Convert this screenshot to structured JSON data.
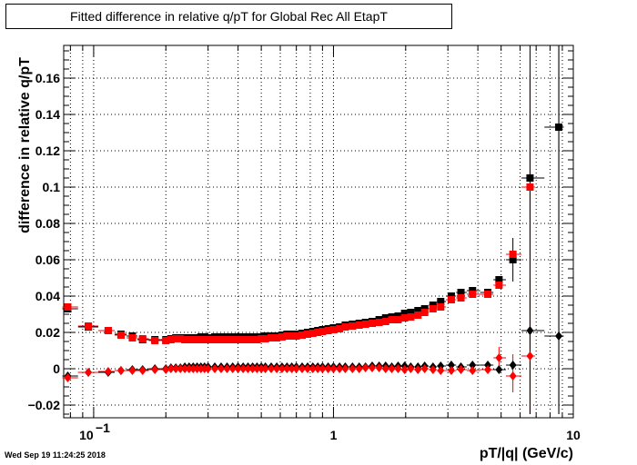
{
  "title": "Fitted difference in relative q/pT for Global Rec All EtapT",
  "timestamp": "Wed Sep 19 11:24:25 2018",
  "chart_data": {
    "type": "scatter",
    "title": "Fitted difference in relative q/pT for Global Rec All EtapT",
    "xlabel": "pT/|q| (GeV/c)",
    "ylabel": "difference in relative q/pT",
    "xscale": "log",
    "xlim": [
      0.075,
      10
    ],
    "ylim": [
      -0.027,
      0.178
    ],
    "grid": true,
    "x_ticks": [
      {
        "value": 0.1,
        "label": "10",
        "sup": "−1"
      },
      {
        "value": 1,
        "label": "1",
        "sup": ""
      },
      {
        "value": 10,
        "label": "10",
        "sup": ""
      }
    ],
    "y_ticks": [
      {
        "value": -0.02,
        "label": "−0.02"
      },
      {
        "value": 0,
        "label": "0"
      },
      {
        "value": 0.02,
        "label": "0.02"
      },
      {
        "value": 0.04,
        "label": "0.04"
      },
      {
        "value": 0.06,
        "label": "0.06"
      },
      {
        "value": 0.08,
        "label": "0.08"
      },
      {
        "value": 0.1,
        "label": "0.1"
      },
      {
        "value": 0.12,
        "label": "0.12"
      },
      {
        "value": 0.14,
        "label": "0.14"
      },
      {
        "value": 0.16,
        "label": "0.16"
      }
    ],
    "series": [
      {
        "marker": "square",
        "color": "#000000",
        "points": [
          [
            0.078,
            0.033
          ],
          [
            0.095,
            0.023
          ],
          [
            0.115,
            0.021
          ],
          [
            0.13,
            0.019
          ],
          [
            0.145,
            0.018
          ],
          [
            0.16,
            0.016
          ],
          [
            0.18,
            0.016
          ],
          [
            0.2,
            0.016
          ],
          [
            0.21,
            0.0165
          ],
          [
            0.22,
            0.017
          ],
          [
            0.23,
            0.017
          ],
          [
            0.24,
            0.017
          ],
          [
            0.25,
            0.017
          ],
          [
            0.26,
            0.017
          ],
          [
            0.27,
            0.017
          ],
          [
            0.28,
            0.0175
          ],
          [
            0.29,
            0.0175
          ],
          [
            0.3,
            0.017
          ],
          [
            0.32,
            0.0175
          ],
          [
            0.34,
            0.0175
          ],
          [
            0.36,
            0.0175
          ],
          [
            0.38,
            0.0175
          ],
          [
            0.4,
            0.0175
          ],
          [
            0.42,
            0.0175
          ],
          [
            0.44,
            0.0175
          ],
          [
            0.46,
            0.0175
          ],
          [
            0.48,
            0.0175
          ],
          [
            0.5,
            0.0175
          ],
          [
            0.52,
            0.018
          ],
          [
            0.55,
            0.018
          ],
          [
            0.58,
            0.018
          ],
          [
            0.61,
            0.0185
          ],
          [
            0.64,
            0.019
          ],
          [
            0.67,
            0.019
          ],
          [
            0.7,
            0.019
          ],
          [
            0.74,
            0.0195
          ],
          [
            0.78,
            0.02
          ],
          [
            0.82,
            0.0205
          ],
          [
            0.86,
            0.021
          ],
          [
            0.9,
            0.0215
          ],
          [
            0.95,
            0.022
          ],
          [
            1.0,
            0.0225
          ],
          [
            1.06,
            0.023
          ],
          [
            1.12,
            0.024
          ],
          [
            1.2,
            0.0245
          ],
          [
            1.28,
            0.025
          ],
          [
            1.36,
            0.0255
          ],
          [
            1.45,
            0.026
          ],
          [
            1.55,
            0.027
          ],
          [
            1.65,
            0.028
          ],
          [
            1.75,
            0.0285
          ],
          [
            1.86,
            0.029
          ],
          [
            1.98,
            0.0305
          ],
          [
            2.1,
            0.031
          ],
          [
            2.25,
            0.032
          ],
          [
            2.4,
            0.033
          ],
          [
            2.6,
            0.035
          ],
          [
            2.8,
            0.037
          ],
          [
            3.1,
            0.04
          ],
          [
            3.4,
            0.042
          ],
          [
            3.8,
            0.043
          ],
          [
            4.4,
            0.042
          ],
          [
            4.9,
            0.049
          ],
          [
            5.6,
            0.06
          ],
          [
            6.6,
            0.105
          ],
          [
            8.7,
            0.133
          ]
        ]
      },
      {
        "marker": "square",
        "color": "#ff0000",
        "points": [
          [
            0.078,
            0.034
          ],
          [
            0.095,
            0.0235
          ],
          [
            0.115,
            0.021
          ],
          [
            0.13,
            0.0185
          ],
          [
            0.145,
            0.017
          ],
          [
            0.16,
            0.0165
          ],
          [
            0.18,
            0.0155
          ],
          [
            0.2,
            0.0155
          ],
          [
            0.21,
            0.016
          ],
          [
            0.22,
            0.0165
          ],
          [
            0.23,
            0.0165
          ],
          [
            0.24,
            0.016
          ],
          [
            0.25,
            0.016
          ],
          [
            0.26,
            0.016
          ],
          [
            0.27,
            0.016
          ],
          [
            0.28,
            0.016
          ],
          [
            0.29,
            0.016
          ],
          [
            0.3,
            0.016
          ],
          [
            0.32,
            0.016
          ],
          [
            0.34,
            0.016
          ],
          [
            0.36,
            0.016
          ],
          [
            0.38,
            0.016
          ],
          [
            0.4,
            0.016
          ],
          [
            0.42,
            0.016
          ],
          [
            0.44,
            0.016
          ],
          [
            0.46,
            0.016
          ],
          [
            0.48,
            0.016
          ],
          [
            0.5,
            0.0165
          ],
          [
            0.52,
            0.0165
          ],
          [
            0.55,
            0.017
          ],
          [
            0.58,
            0.017
          ],
          [
            0.61,
            0.0175
          ],
          [
            0.64,
            0.018
          ],
          [
            0.67,
            0.018
          ],
          [
            0.7,
            0.018
          ],
          [
            0.74,
            0.0185
          ],
          [
            0.78,
            0.019
          ],
          [
            0.82,
            0.0195
          ],
          [
            0.86,
            0.02
          ],
          [
            0.9,
            0.0205
          ],
          [
            0.95,
            0.021
          ],
          [
            1.0,
            0.0215
          ],
          [
            1.06,
            0.022
          ],
          [
            1.12,
            0.023
          ],
          [
            1.2,
            0.0235
          ],
          [
            1.28,
            0.024
          ],
          [
            1.36,
            0.0245
          ],
          [
            1.45,
            0.025
          ],
          [
            1.55,
            0.0255
          ],
          [
            1.65,
            0.026
          ],
          [
            1.75,
            0.027
          ],
          [
            1.86,
            0.027
          ],
          [
            1.98,
            0.028
          ],
          [
            2.1,
            0.0285
          ],
          [
            2.25,
            0.0295
          ],
          [
            2.4,
            0.031
          ],
          [
            2.6,
            0.033
          ],
          [
            2.8,
            0.034
          ],
          [
            3.1,
            0.038
          ],
          [
            3.4,
            0.039
          ],
          [
            3.8,
            0.041
          ],
          [
            4.4,
            0.041
          ],
          [
            4.9,
            0.046
          ],
          [
            5.6,
            0.063
          ],
          [
            6.6,
            0.1
          ]
        ]
      },
      {
        "marker": "diamond",
        "color": "#000000",
        "points": [
          [
            0.078,
            -0.004
          ],
          [
            0.095,
            -0.002
          ],
          [
            0.115,
            -0.002
          ],
          [
            0.13,
            -0.001
          ],
          [
            0.145,
            -0.0005
          ],
          [
            0.16,
            -0.0005
          ],
          [
            0.18,
            0
          ],
          [
            0.2,
            0
          ],
          [
            0.21,
            0.0005
          ],
          [
            0.22,
            0.0005
          ],
          [
            0.23,
            0.0005
          ],
          [
            0.24,
            0.001
          ],
          [
            0.25,
            0.001
          ],
          [
            0.26,
            0.001
          ],
          [
            0.27,
            0.001
          ],
          [
            0.28,
            0.001
          ],
          [
            0.29,
            0.001
          ],
          [
            0.3,
            0.001
          ],
          [
            0.32,
            0.001
          ],
          [
            0.34,
            0.001
          ],
          [
            0.36,
            0.001
          ],
          [
            0.38,
            0.001
          ],
          [
            0.4,
            0.001
          ],
          [
            0.42,
            0.001
          ],
          [
            0.44,
            0.001
          ],
          [
            0.46,
            0.001
          ],
          [
            0.48,
            0.001
          ],
          [
            0.5,
            0.001
          ],
          [
            0.52,
            0.001
          ],
          [
            0.55,
            0.001
          ],
          [
            0.58,
            0.001
          ],
          [
            0.61,
            0.001
          ],
          [
            0.64,
            0.001
          ],
          [
            0.67,
            0.001
          ],
          [
            0.7,
            0.001
          ],
          [
            0.74,
            0.001
          ],
          [
            0.78,
            0.001
          ],
          [
            0.82,
            0.001
          ],
          [
            0.86,
            0.001
          ],
          [
            0.9,
            0.001
          ],
          [
            0.95,
            0.001
          ],
          [
            1.0,
            0.001
          ],
          [
            1.06,
            0.001
          ],
          [
            1.12,
            0.001
          ],
          [
            1.2,
            0.001
          ],
          [
            1.28,
            0.001
          ],
          [
            1.36,
            0.001
          ],
          [
            1.45,
            0.0015
          ],
          [
            1.55,
            0.0015
          ],
          [
            1.65,
            0.0015
          ],
          [
            1.75,
            0.001
          ],
          [
            1.86,
            0.0015
          ],
          [
            1.98,
            0.0015
          ],
          [
            2.1,
            0.001
          ],
          [
            2.25,
            0.001
          ],
          [
            2.4,
            0.0015
          ],
          [
            2.6,
            0.001
          ],
          [
            2.8,
            0.0015
          ],
          [
            3.1,
            0.002
          ],
          [
            3.4,
            0.001
          ],
          [
            3.8,
            0.002
          ],
          [
            4.4,
            0.002
          ],
          [
            4.9,
            -0.0005
          ],
          [
            5.6,
            0.002
          ],
          [
            6.6,
            0.021
          ],
          [
            8.7,
            0.018
          ]
        ]
      },
      {
        "marker": "diamond",
        "color": "#ff0000",
        "points": [
          [
            0.078,
            -0.005
          ],
          [
            0.095,
            -0.002
          ],
          [
            0.115,
            -0.0015
          ],
          [
            0.13,
            -0.001
          ],
          [
            0.145,
            -0.001
          ],
          [
            0.16,
            -0.001
          ],
          [
            0.18,
            -0.0005
          ],
          [
            0.2,
            -0.0005
          ],
          [
            0.21,
            0
          ],
          [
            0.22,
            0
          ],
          [
            0.23,
            0
          ],
          [
            0.24,
            0
          ],
          [
            0.25,
            0
          ],
          [
            0.26,
            0
          ],
          [
            0.27,
            0
          ],
          [
            0.28,
            0
          ],
          [
            0.29,
            0
          ],
          [
            0.3,
            0
          ],
          [
            0.32,
            0
          ],
          [
            0.34,
            0
          ],
          [
            0.36,
            0
          ],
          [
            0.38,
            0
          ],
          [
            0.4,
            0
          ],
          [
            0.42,
            0
          ],
          [
            0.44,
            0
          ],
          [
            0.46,
            0
          ],
          [
            0.48,
            0
          ],
          [
            0.5,
            0
          ],
          [
            0.52,
            0
          ],
          [
            0.55,
            0
          ],
          [
            0.58,
            0
          ],
          [
            0.61,
            0
          ],
          [
            0.64,
            0
          ],
          [
            0.67,
            0
          ],
          [
            0.7,
            0
          ],
          [
            0.74,
            0
          ],
          [
            0.78,
            0
          ],
          [
            0.82,
            0
          ],
          [
            0.86,
            0
          ],
          [
            0.9,
            0
          ],
          [
            0.95,
            0
          ],
          [
            1.0,
            0
          ],
          [
            1.06,
            0
          ],
          [
            1.12,
            0
          ],
          [
            1.2,
            0
          ],
          [
            1.28,
            0
          ],
          [
            1.36,
            0.0005
          ],
          [
            1.45,
            0.0005
          ],
          [
            1.55,
            0.0005
          ],
          [
            1.65,
            0
          ],
          [
            1.75,
            0
          ],
          [
            1.86,
            0
          ],
          [
            1.98,
            -0.0005
          ],
          [
            2.1,
            0
          ],
          [
            2.25,
            -0.0005
          ],
          [
            2.4,
            0
          ],
          [
            2.6,
            -0.0005
          ],
          [
            2.8,
            -0.001
          ],
          [
            3.1,
            -0.001
          ],
          [
            3.4,
            -0.0005
          ],
          [
            3.8,
            -0.001
          ],
          [
            4.4,
            -0.0005
          ],
          [
            4.9,
            0.006
          ],
          [
            5.6,
            -0.004
          ],
          [
            6.6,
            0.007
          ]
        ]
      }
    ],
    "large_errors": [
      {
        "x": 6.6,
        "y": 0.1,
        "lo": -0.025,
        "hi": 0.162,
        "color": "#ff0000"
      },
      {
        "x": 6.6,
        "y": 0.007,
        "lo": -0.025,
        "hi": 0.05,
        "color": "#ff0000"
      },
      {
        "x": 6.6,
        "y": 0.105,
        "lo": -0.025,
        "hi": 0.178,
        "color": "#000000"
      },
      {
        "x": 8.7,
        "y": 0.133,
        "lo": -0.025,
        "hi": 0.178,
        "color": "#000000"
      },
      {
        "x": 8.7,
        "y": 0.018,
        "lo": -0.025,
        "hi": 0.178,
        "color": "#000000"
      },
      {
        "x": 5.6,
        "y": 0.06,
        "lo": 0.048,
        "hi": 0.072,
        "color": "#000000"
      },
      {
        "x": 5.6,
        "y": -0.004,
        "lo": -0.013,
        "hi": 0.008,
        "color": "#ff0000"
      },
      {
        "x": 4.9,
        "y": 0.006,
        "lo": 0.0,
        "hi": 0.012,
        "color": "#ff0000"
      }
    ]
  }
}
